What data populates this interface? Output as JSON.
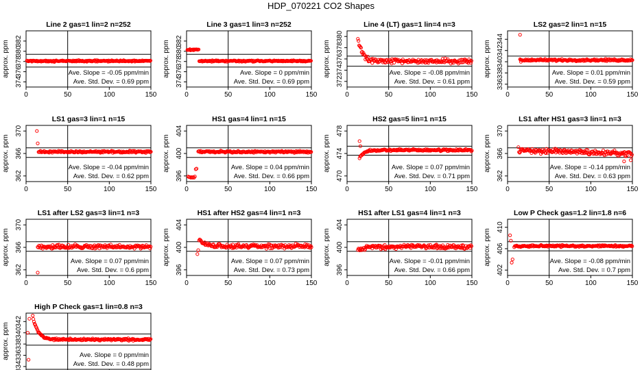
{
  "figure_title": "HDP_070221  CO2 Shapes",
  "colors": {
    "points": "#ff0000",
    "lines": "#000000",
    "background": "#ffffff"
  },
  "chart_data": [
    {
      "type": "scatter",
      "title": "Line 2 gas=1 lin=2 n=252",
      "ylabel": "approx. ppm",
      "xlim": [
        0,
        150
      ],
      "ylim": [
        373,
        384
      ],
      "yticks": [
        374,
        376,
        378,
        380,
        382
      ],
      "xticks": [
        0,
        50,
        100,
        150
      ],
      "hlines": [
        379.4,
        376.9
      ],
      "vline": 50,
      "shape": "flat",
      "start_x": 1,
      "level": 378.1,
      "noise": 0.12,
      "slope_text": "Ave. Slope = -0.05  ppm/min",
      "std_text": "Ave. Std. Dev. = 0.69  ppm"
    },
    {
      "type": "scatter",
      "title": "Line 3 gas=1 lin=3 n=252",
      "ylabel": "approx. ppm",
      "xlim": [
        0,
        150
      ],
      "ylim": [
        373,
        384
      ],
      "yticks": [
        374,
        376,
        378,
        380,
        382
      ],
      "xticks": [
        0,
        50,
        100,
        150
      ],
      "hlines": [
        379.4,
        376.9
      ],
      "vline": 50,
      "shape": "bump",
      "start_x": 1,
      "level": 378.1,
      "noise": 0.12,
      "bump_level": 380.3,
      "bump_end": 15,
      "slope_text": "Ave. Slope = 0  ppm/min",
      "std_text": "Ave. Std. Dev. = 0.69  ppm"
    },
    {
      "type": "scatter",
      "title": "Line 4 (LT) gas=1 lin=4 n=3",
      "ylabel": "approx. ppm",
      "xlim": [
        0,
        150
      ],
      "ylim": [
        371,
        381
      ],
      "yticks": [
        372,
        374,
        376,
        378,
        380
      ],
      "xticks": [
        0,
        50,
        100,
        150
      ],
      "hlines": [
        376.5,
        374.7
      ],
      "vline": 50,
      "shape": "decay",
      "start_x": 13,
      "level": 375.6,
      "noise": 0.35,
      "start_level": 379.8,
      "tau": 5,
      "slope_text": "Ave. Slope = -0.08  ppm/min",
      "std_text": "Ave. Std. Dev. = 0.61  ppm"
    },
    {
      "type": "scatter",
      "title": "LS2 gas=2 lin=1 n=15",
      "ylabel": "approx. ppm",
      "xlim": [
        0,
        150
      ],
      "ylim": [
        335.5,
        345.5
      ],
      "yticks": [
        336,
        338,
        340,
        342,
        344
      ],
      "xticks": [
        0,
        50,
        100,
        150
      ],
      "hlines": [
        341.0,
        339.2
      ],
      "vline": 50,
      "shape": "flat",
      "start_x": 15,
      "level": 340.3,
      "noise": 0.15,
      "outliers": [
        [
          15,
          344.8
        ],
        [
          16,
          340.0
        ]
      ],
      "slope_text": "Ave. Slope = 0.01  ppm/min",
      "std_text": "Ave. Std. Dev. = 0.59  ppm"
    },
    {
      "type": "scatter",
      "title": "LS1 gas=3 lin=1 n=15",
      "ylabel": "approx. ppm",
      "xlim": [
        0,
        150
      ],
      "ylim": [
        361,
        371
      ],
      "yticks": [
        362,
        366,
        370
      ],
      "xticks": [
        0,
        50,
        100,
        150
      ],
      "hlines": [
        367.0,
        365.3
      ],
      "vline": 50,
      "shape": "flat",
      "start_x": 15,
      "level": 366.3,
      "noise": 0.15,
      "outliers": [
        [
          13,
          370.0
        ],
        [
          14,
          367.8
        ]
      ],
      "slope_text": "Ave. Slope = -0.04  ppm/min",
      "std_text": "Ave. Std. Dev. = 0.62  ppm"
    },
    {
      "type": "scatter",
      "title": "HS1 gas=4 lin=1 n=15",
      "ylabel": "approx. ppm",
      "xlim": [
        0,
        150
      ],
      "ylim": [
        395,
        405
      ],
      "yticks": [
        396,
        400,
        404
      ],
      "xticks": [
        0,
        50,
        100,
        150
      ],
      "hlines": [
        401.0,
        399.3
      ],
      "vline": 50,
      "shape": "flat",
      "start_x": 14,
      "level": 400.3,
      "noise": 0.15,
      "outliers": [
        [
          2,
          395.9
        ],
        [
          3,
          395.8
        ],
        [
          4,
          395.8
        ],
        [
          5,
          395.7
        ],
        [
          6,
          395.8
        ],
        [
          7,
          395.7
        ],
        [
          8,
          395.8
        ],
        [
          9,
          395.7
        ],
        [
          10,
          395.9
        ],
        [
          11,
          397.2
        ],
        [
          12,
          397.3
        ]
      ],
      "slope_text": "Ave. Slope = 0.04  ppm/min",
      "std_text": "Ave. Std. Dev. = 0.66  ppm"
    },
    {
      "type": "scatter",
      "title": "HS2 gas=5 lin=1 n=15",
      "ylabel": "approx. ppm",
      "xlim": [
        0,
        150
      ],
      "ylim": [
        469,
        479
      ],
      "yticks": [
        470,
        474,
        478
      ],
      "xticks": [
        0,
        50,
        100,
        150
      ],
      "hlines": [
        475.3,
        473.7
      ],
      "vline": 50,
      "shape": "rise",
      "start_x": 15,
      "level": 474.6,
      "noise": 0.15,
      "start_level": 473.2,
      "tau": 5,
      "outliers": [
        [
          15,
          476.2
        ],
        [
          16,
          475.3
        ]
      ],
      "slope_text": "Ave. Slope = 0.07  ppm/min",
      "std_text": "Ave. Std. Dev. = 0.71  ppm"
    },
    {
      "type": "scatter",
      "title": "LS1 after HS1 gas=3 lin=1 n=3",
      "ylabel": "approx. ppm",
      "xlim": [
        0,
        150
      ],
      "ylim": [
        361,
        371
      ],
      "yticks": [
        362,
        366,
        370
      ],
      "xticks": [
        0,
        50,
        100,
        150
      ],
      "hlines": [
        367.0,
        365.3
      ],
      "vline": 50,
      "shape": "flat",
      "start_x": 13,
      "level": 366.3,
      "noise": 0.35,
      "trend": -0.005,
      "outliers": [
        [
          140,
          364.6
        ],
        [
          148,
          364.8
        ]
      ],
      "slope_text": "Ave. Slope = -0.14  ppm/min",
      "std_text": "Ave. Std. Dev. = 0.63  ppm"
    },
    {
      "type": "scatter",
      "title": "LS1 after LS2 gas=3 lin=1 n=3",
      "ylabel": "approx. ppm",
      "xlim": [
        0,
        150
      ],
      "ylim": [
        361,
        371
      ],
      "yticks": [
        362,
        366,
        370
      ],
      "xticks": [
        0,
        50,
        100,
        150
      ],
      "hlines": [
        367.0,
        365.3
      ],
      "vline": 50,
      "shape": "flat",
      "start_x": 14,
      "level": 366.1,
      "noise": 0.3,
      "outliers": [
        [
          14,
          361.5
        ]
      ],
      "slope_text": "Ave. Slope = 0.07  ppm/min",
      "std_text": "Ave. Std. Dev. = 0.6  ppm"
    },
    {
      "type": "scatter",
      "title": "HS1 after HS2 gas=4 lin=1 n=3",
      "ylabel": "approx. ppm",
      "xlim": [
        0,
        150
      ],
      "ylim": [
        395,
        405
      ],
      "yticks": [
        396,
        400,
        404
      ],
      "xticks": [
        0,
        50,
        100,
        150
      ],
      "hlines": [
        401.0,
        399.3
      ],
      "vline": 50,
      "shape": "decay",
      "start_x": 15,
      "level": 400.2,
      "noise": 0.3,
      "start_level": 401.4,
      "tau": 6,
      "outliers": [
        [
          13,
          398.8
        ],
        [
          14,
          399.5
        ]
      ],
      "slope_text": "Ave. Slope = 0.07  ppm/min",
      "std_text": "Ave. Std. Dev. = 0.73  ppm"
    },
    {
      "type": "scatter",
      "title": "HS1 after LS1 gas=4 lin=1 n=3",
      "ylabel": "approx. ppm",
      "xlim": [
        0,
        150
      ],
      "ylim": [
        395,
        405
      ],
      "yticks": [
        396,
        400,
        404
      ],
      "xticks": [
        0,
        50,
        100,
        150
      ],
      "hlines": [
        401.0,
        399.3
      ],
      "vline": 50,
      "shape": "rise",
      "start_x": 13,
      "level": 400.1,
      "noise": 0.3,
      "start_level": 399.5,
      "tau": 6,
      "slope_text": "Ave. Slope = -0.01  ppm/min",
      "std_text": "Ave. Std. Dev. = 0.66  ppm"
    },
    {
      "type": "scatter",
      "title": "Low P Check gas=1.2 lin=1.8 n=6",
      "ylabel": "approx. ppm",
      "xlim": [
        0,
        150
      ],
      "ylim": [
        401,
        411.5
      ],
      "yticks": [
        402,
        406,
        410
      ],
      "xticks": [
        0,
        50,
        100,
        150
      ],
      "hlines": [
        407.3,
        405.6
      ],
      "vline": 50,
      "shape": "flat",
      "start_x": 8,
      "level": 406.5,
      "noise": 0.15,
      "outliers": [
        [
          3,
          408.5
        ],
        [
          4,
          407.5
        ],
        [
          5,
          403.4
        ],
        [
          6,
          404.0
        ]
      ],
      "slope_text": "Ave. Slope = -0.08  ppm/min",
      "std_text": "Ave. Std. Dev. = 0.7  ppm"
    },
    {
      "type": "scatter",
      "title": "High P Check gas=1 lin=0.8 n=3",
      "ylabel": "approx. ppm",
      "xlim": [
        0,
        150
      ],
      "ylim": [
        333.5,
        343.5
      ],
      "yticks": [
        334,
        336,
        338,
        340,
        342
      ],
      "xticks": [
        0,
        50,
        100,
        150
      ],
      "hlines": [
        339.8,
        337.8
      ],
      "vline": 50,
      "shape": "decay",
      "start_x": 8,
      "level": 338.8,
      "noise": 0.15,
      "start_level": 343.0,
      "tau": 6,
      "outliers": [
        [
          2,
          340.0
        ],
        [
          3,
          335.2
        ],
        [
          4,
          342.5
        ]
      ],
      "slope_text": "Ave. Slope = 0  ppm/min",
      "std_text": "Ave. Std. Dev. = 0.48  ppm"
    }
  ]
}
